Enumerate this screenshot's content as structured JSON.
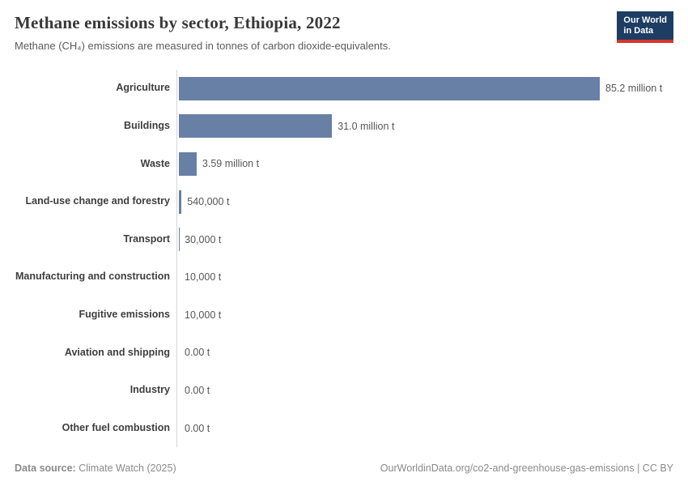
{
  "header": {
    "title": "Methane emissions by sector, Ethiopia, 2022",
    "subtitle": "Methane (CH₄) emissions are measured in tonnes of carbon dioxide-equivalents.",
    "logo": {
      "line1": "Our World",
      "line2": "in Data"
    }
  },
  "chart_data": {
    "type": "bar",
    "orientation": "horizontal",
    "title": "Methane emissions by sector, Ethiopia, 2022",
    "unit": "tonnes of carbon dioxide-equivalents",
    "categories": [
      "Agriculture",
      "Buildings",
      "Waste",
      "Land-use change and forestry",
      "Transport",
      "Manufacturing and construction",
      "Fugitive emissions",
      "Aviation and shipping",
      "Industry",
      "Other fuel combustion"
    ],
    "values": [
      85200000,
      31000000,
      3590000,
      540000,
      30000,
      10000,
      10000,
      0,
      0,
      0
    ],
    "value_labels": [
      "85.2 million t",
      "31.0 million t",
      "3.59 million t",
      "540,000 t",
      "30,000 t",
      "10,000 t",
      "10,000 t",
      "0.00 t",
      "0.00 t",
      "0.00 t"
    ],
    "bar_color": "#6880a5",
    "xlim": [
      0,
      85200000
    ],
    "grid": false,
    "legend": "none"
  },
  "footer": {
    "source_label": "Data source:",
    "source": " Climate Watch (2025)",
    "credit": "OurWorldinData.org/co2-and-greenhouse-gas-emissions | CC BY"
  }
}
